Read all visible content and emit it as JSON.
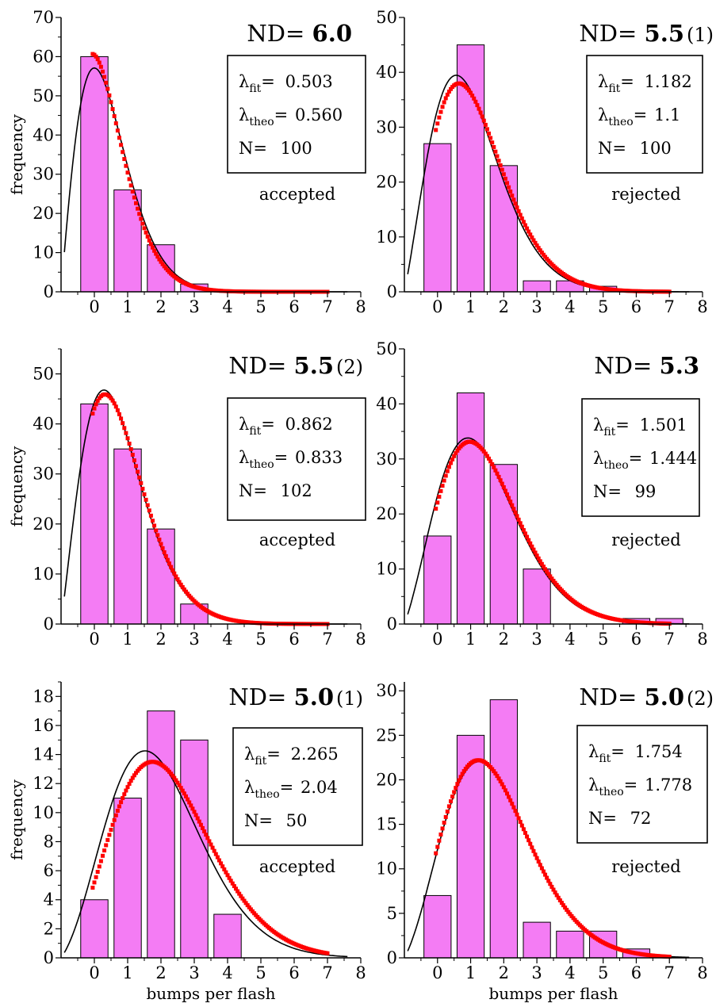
{
  "chart_data": [
    {
      "type": "bar",
      "title_prefix": "ND=",
      "title_value": "6.0",
      "title_suffix": "",
      "xlabel": "",
      "ylabel": "frequency",
      "xlim": [
        -1,
        8
      ],
      "ylim": [
        0,
        70
      ],
      "x_ticks": [
        0,
        1,
        2,
        3,
        4,
        5,
        6,
        7,
        8
      ],
      "y_ticks": [
        0,
        10,
        20,
        30,
        40,
        50,
        60,
        70
      ],
      "categories": [
        0,
        1,
        2,
        3,
        4,
        5,
        6,
        7
      ],
      "values": [
        60,
        26,
        12,
        2,
        0,
        0,
        0,
        0
      ],
      "fit_params": {
        "lambda_fit": 0.503,
        "lambda_theo": 0.56,
        "N": 100
      },
      "lambda_fit_label": "λ",
      "lambda_fit_sub": "fit",
      "lambda_fit_value": "0.503",
      "lambda_theo_label": "λ",
      "lambda_theo_sub": "theo",
      "lambda_theo_value": "0.560",
      "n_label": "N=",
      "n_value": "100",
      "status": "accepted",
      "bar_color": "#f47cf4",
      "fit_color": "#ff0000",
      "theory_color": "#000000"
    },
    {
      "type": "bar",
      "title_prefix": "ND=",
      "title_value": "5.5",
      "title_suffix": "(1)",
      "xlabel": "",
      "ylabel": "",
      "xlim": [
        -1,
        8
      ],
      "ylim": [
        0,
        50
      ],
      "x_ticks": [
        0,
        1,
        2,
        3,
        4,
        5,
        6,
        7,
        8
      ],
      "y_ticks": [
        0,
        10,
        20,
        30,
        40,
        50
      ],
      "categories": [
        0,
        1,
        2,
        3,
        4,
        5,
        6,
        7
      ],
      "values": [
        27,
        45,
        23,
        2,
        2,
        1,
        0,
        0
      ],
      "fit_params": {
        "lambda_fit": 1.182,
        "lambda_theo": 1.1,
        "N": 100
      },
      "lambda_fit_label": "λ",
      "lambda_fit_sub": "fit",
      "lambda_fit_value": "1.182",
      "lambda_theo_label": "λ",
      "lambda_theo_sub": "theo",
      "lambda_theo_value": "1.1",
      "n_label": "N=",
      "n_value": "100",
      "status": "rejected",
      "bar_color": "#f47cf4",
      "fit_color": "#ff0000",
      "theory_color": "#000000"
    },
    {
      "type": "bar",
      "title_prefix": "ND=",
      "title_value": "5.5",
      "title_suffix": "(2)",
      "xlabel": "",
      "ylabel": "frequency",
      "xlim": [
        -1,
        8
      ],
      "ylim": [
        0,
        55
      ],
      "x_ticks": [
        0,
        1,
        2,
        3,
        4,
        5,
        6,
        7,
        8
      ],
      "y_ticks": [
        0,
        10,
        20,
        30,
        40,
        50
      ],
      "categories": [
        0,
        1,
        2,
        3,
        4,
        5,
        6,
        7
      ],
      "values": [
        44,
        35,
        19,
        4,
        0,
        0,
        0,
        0
      ],
      "fit_params": {
        "lambda_fit": 0.862,
        "lambda_theo": 0.833,
        "N": 102
      },
      "lambda_fit_label": "λ",
      "lambda_fit_sub": "fit",
      "lambda_fit_value": "0.862",
      "lambda_theo_label": "λ",
      "lambda_theo_sub": "theo",
      "lambda_theo_value": "0.833",
      "n_label": "N=",
      "n_value": "102",
      "status": "accepted",
      "bar_color": "#f47cf4",
      "fit_color": "#ff0000",
      "theory_color": "#000000"
    },
    {
      "type": "bar",
      "title_prefix": "ND=",
      "title_value": "5.3",
      "title_suffix": "",
      "xlabel": "",
      "ylabel": "",
      "xlim": [
        -1,
        8
      ],
      "ylim": [
        0,
        50
      ],
      "x_ticks": [
        0,
        1,
        2,
        3,
        4,
        5,
        6,
        7,
        8
      ],
      "y_ticks": [
        0,
        10,
        20,
        30,
        40,
        50
      ],
      "categories": [
        0,
        1,
        2,
        3,
        4,
        5,
        6,
        7
      ],
      "values": [
        16,
        42,
        29,
        10,
        0,
        0,
        1,
        1
      ],
      "fit_params": {
        "lambda_fit": 1.501,
        "lambda_theo": 1.444,
        "N": 99
      },
      "lambda_fit_label": "λ",
      "lambda_fit_sub": "fit",
      "lambda_fit_value": "1.501",
      "lambda_theo_label": "λ",
      "lambda_theo_sub": "theo",
      "lambda_theo_value": "1.444",
      "n_label": "N=",
      "n_value": "99",
      "status": "rejected",
      "bar_color": "#f47cf4",
      "fit_color": "#ff0000",
      "theory_color": "#000000"
    },
    {
      "type": "bar",
      "title_prefix": "ND=",
      "title_value": "5.0",
      "title_suffix": "(1)",
      "xlabel": "bumps per flash",
      "ylabel": "frequency",
      "xlim": [
        -1,
        8
      ],
      "ylim": [
        0,
        19
      ],
      "x_ticks": [
        0,
        1,
        2,
        3,
        4,
        5,
        6,
        7,
        8
      ],
      "y_ticks": [
        0,
        2,
        4,
        6,
        8,
        10,
        12,
        14,
        16,
        18
      ],
      "categories": [
        0,
        1,
        2,
        3,
        4,
        5,
        6,
        7
      ],
      "values": [
        4,
        11,
        17,
        15,
        3,
        0,
        0,
        0
      ],
      "fit_params": {
        "lambda_fit": 2.265,
        "lambda_theo": 2.04,
        "N": 50
      },
      "lambda_fit_label": "λ",
      "lambda_fit_sub": "fit",
      "lambda_fit_value": "2.265",
      "lambda_theo_label": "λ",
      "lambda_theo_sub": "theo",
      "lambda_theo_value": "2.04",
      "n_label": "N=",
      "n_value": "50",
      "status": "accepted",
      "bar_color": "#f47cf4",
      "fit_color": "#ff0000",
      "theory_color": "#000000"
    },
    {
      "type": "bar",
      "title_prefix": "ND=",
      "title_value": "5.0",
      "title_suffix": "(2)",
      "xlabel": "bumps per flash",
      "ylabel": "",
      "xlim": [
        -1,
        8
      ],
      "ylim": [
        0,
        31
      ],
      "x_ticks": [
        0,
        1,
        2,
        3,
        4,
        5,
        6,
        7,
        8
      ],
      "y_ticks": [
        0,
        5,
        10,
        15,
        20,
        25,
        30
      ],
      "categories": [
        0,
        1,
        2,
        3,
        4,
        5,
        6,
        7
      ],
      "values": [
        7,
        25,
        29,
        4,
        3,
        3,
        1,
        0
      ],
      "fit_params": {
        "lambda_fit": 1.754,
        "lambda_theo": 1.778,
        "N": 72
      },
      "lambda_fit_label": "λ",
      "lambda_fit_sub": "fit",
      "lambda_fit_value": "1.754",
      "lambda_theo_label": "λ",
      "lambda_theo_sub": "theo",
      "lambda_theo_value": "1.778",
      "n_label": "N=",
      "n_value": "72",
      "status": "rejected",
      "bar_color": "#f47cf4",
      "fit_color": "#ff0000",
      "theory_color": "#000000"
    }
  ]
}
